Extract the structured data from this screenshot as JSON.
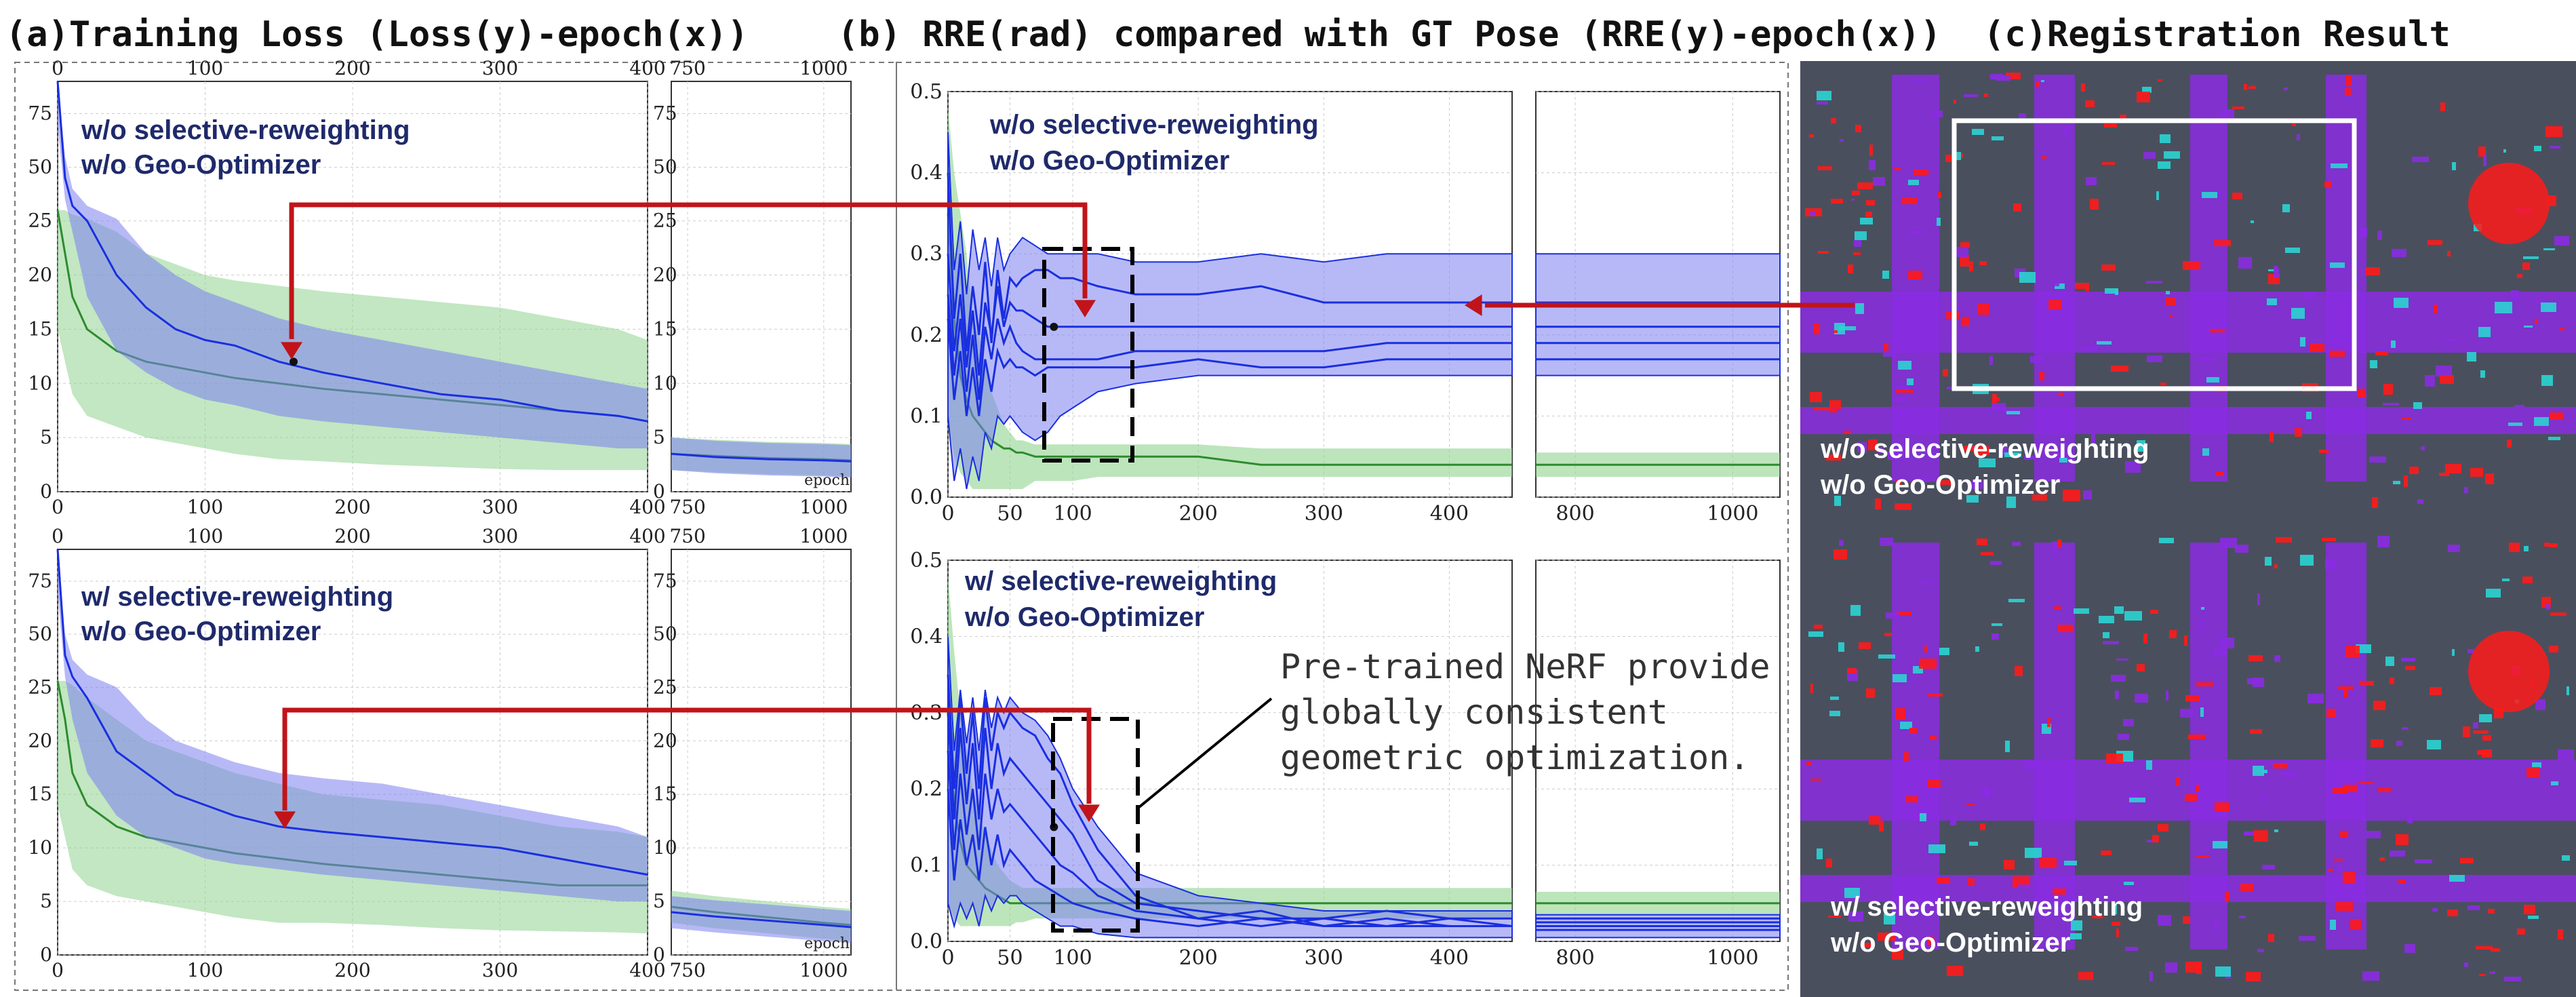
{
  "panels": {
    "a_title": "(a)Training Loss (Loss(y)-epoch(x))",
    "b_title": "(b)  RRE(rad) compared with GT Pose (RRE(y)-epoch(x))",
    "c_title": "(c)Registration Result"
  },
  "labels": {
    "top_line1": "w/o selective-reweighting",
    "top_line2": "w/o Geo-Optimizer",
    "bot_line1": "w/ selective-reweighting",
    "bot_line2": "w/o Geo-Optimizer",
    "epoch": "epoch",
    "annotation": [
      "Pre-trained NeRF provide",
      "globally consistent",
      "geometric optimization."
    ]
  },
  "colors": {
    "blue_line": "#1a2fe0",
    "blue_band": "#7b7ff0",
    "green_line": "#2e8b2e",
    "green_band": "#8fd48f",
    "red_arrow": "#c0141a",
    "map_bg": "#4a4f5e",
    "purple": "#8a2be2",
    "red_points": "#ff1a1a",
    "cyan": "#2ad4d4"
  },
  "chart_data": [
    {
      "type": "line",
      "x": [
        0,
        5,
        10,
        20,
        40,
        60,
        80,
        100,
        120,
        150,
        180,
        220,
        260,
        300,
        340,
        380,
        400
      ],
      "x_right": [
        720,
        800,
        900,
        1000,
        1050
      ],
      "series": [
        {
          "values": [
            90,
            45,
            32,
            25,
            20,
            17,
            15,
            14,
            13.5,
            12,
            11,
            10,
            9,
            8.5,
            7.5,
            7,
            6.5
          ],
          "band_lo": [
            70,
            35,
            24,
            18,
            13,
            11,
            9.5,
            8.5,
            8,
            7,
            6.5,
            6,
            5.5,
            5,
            4.5,
            4,
            4
          ],
          "band_hi": [
            90,
            55,
            40,
            32,
            26,
            22,
            20,
            18.5,
            17.5,
            16,
            15,
            14,
            13,
            12,
            11,
            10,
            9.5
          ],
          "right_values": [
            3.5,
            3.2,
            3,
            2.9,
            2.8
          ]
        },
        {
          "values": [
            30,
            22,
            18,
            15,
            13,
            12,
            11.5,
            11,
            10.5,
            10,
            9.5,
            9,
            8.5,
            8,
            7.5,
            7,
            6.5
          ],
          "band_lo": [
            15,
            12,
            9,
            7,
            6,
            5,
            4.5,
            4,
            3.5,
            3,
            2.8,
            2.5,
            2.3,
            2.1,
            2,
            2,
            2
          ],
          "band_hi": [
            30,
            30,
            28,
            26,
            24,
            22,
            21,
            20,
            19.5,
            19,
            18.5,
            18,
            17.5,
            17,
            16,
            15,
            14
          ],
          "right_values": [
            3.5,
            3.3,
            3.1,
            3,
            2.9
          ]
        }
      ],
      "xticks": [
        0,
        100,
        200,
        300,
        400
      ],
      "xticks_right": [
        750,
        1000
      ],
      "yticks": [
        0,
        5,
        10,
        15,
        20,
        25,
        50,
        75
      ],
      "ylim": [
        0,
        90
      ],
      "marker": {
        "x": 160,
        "y": 12
      }
    },
    {
      "type": "line",
      "x": [
        0,
        5,
        10,
        20,
        40,
        60,
        80,
        100,
        120,
        150,
        180,
        220,
        260,
        300,
        340,
        380,
        400
      ],
      "x_right": [
        720,
        800,
        900,
        1000,
        1050
      ],
      "series": [
        {
          "values": [
            90,
            40,
            30,
            24,
            19,
            17,
            15,
            14,
            13,
            12,
            11.5,
            11,
            10.5,
            10,
            9,
            8,
            7.5
          ],
          "band_lo": [
            70,
            30,
            22,
            17,
            13,
            11,
            10,
            9,
            8.5,
            8,
            7.5,
            7,
            6.5,
            6,
            5.5,
            5,
            5
          ],
          "band_hi": [
            90,
            50,
            38,
            31,
            25,
            22,
            20,
            19,
            18,
            17,
            16.5,
            16,
            15,
            14,
            13,
            12,
            11
          ],
          "right_values": [
            4,
            3.6,
            3.2,
            2.8,
            2.6
          ]
        },
        {
          "values": [
            28,
            22,
            17,
            14,
            12,
            11,
            10.5,
            10,
            9.5,
            9,
            8.5,
            8,
            7.5,
            7,
            6.5,
            6.5,
            6.5
          ],
          "band_lo": [
            14,
            11,
            8,
            6.5,
            5.5,
            5,
            4.5,
            4,
            3.5,
            3,
            3,
            2.8,
            2.5,
            2.3,
            2.2,
            2.1,
            2
          ],
          "band_hi": [
            28,
            28,
            26,
            24,
            22,
            20,
            19,
            18,
            17,
            16,
            15,
            14.5,
            14,
            13,
            12,
            11.5,
            11
          ],
          "right_values": [
            4.5,
            4,
            3.5,
            3,
            2.8
          ]
        }
      ],
      "xticks": [
        0,
        100,
        200,
        300,
        400
      ],
      "xticks_right": [
        750,
        1000
      ],
      "yticks": [
        0,
        5,
        10,
        15,
        20,
        25,
        50,
        75
      ],
      "ylim": [
        0,
        90
      ],
      "marker": {
        "x": 155,
        "y": 13
      }
    },
    {
      "type": "line",
      "x": [
        0,
        5,
        10,
        15,
        20,
        25,
        30,
        35,
        40,
        45,
        50,
        55,
        60,
        70,
        80,
        90,
        100,
        120,
        150,
        200,
        250,
        300,
        350,
        400,
        450
      ],
      "x_right": [
        750,
        800,
        900,
        1000,
        1060
      ],
      "blue_lines": [
        [
          0.4,
          0.22,
          0.3,
          0.18,
          0.26,
          0.2,
          0.29,
          0.19,
          0.28,
          0.22,
          0.27,
          0.26,
          0.27,
          0.28,
          0.28,
          0.27,
          0.27,
          0.26,
          0.25,
          0.25,
          0.26,
          0.24,
          0.24,
          0.24,
          0.24
        ],
        [
          0.3,
          0.18,
          0.25,
          0.16,
          0.23,
          0.15,
          0.24,
          0.2,
          0.26,
          0.21,
          0.24,
          0.23,
          0.23,
          0.22,
          0.21,
          0.21,
          0.21,
          0.21,
          0.21,
          0.21,
          0.21,
          0.21,
          0.21,
          0.21,
          0.21
        ],
        [
          0.25,
          0.15,
          0.22,
          0.13,
          0.2,
          0.12,
          0.21,
          0.17,
          0.22,
          0.19,
          0.21,
          0.19,
          0.18,
          0.17,
          0.17,
          0.17,
          0.17,
          0.17,
          0.18,
          0.18,
          0.18,
          0.18,
          0.19,
          0.19,
          0.19
        ],
        [
          0.22,
          0.12,
          0.18,
          0.1,
          0.16,
          0.1,
          0.17,
          0.13,
          0.18,
          0.16,
          0.17,
          0.16,
          0.16,
          0.15,
          0.16,
          0.16,
          0.16,
          0.16,
          0.16,
          0.17,
          0.16,
          0.16,
          0.17,
          0.17,
          0.17
        ]
      ],
      "blue_right": [
        [
          0.24,
          0.24,
          0.24,
          0.24,
          0.24
        ],
        [
          0.21,
          0.21,
          0.21,
          0.21,
          0.21
        ],
        [
          0.19,
          0.19,
          0.19,
          0.19,
          0.19
        ],
        [
          0.17,
          0.17,
          0.17,
          0.17,
          0.17
        ]
      ],
      "band_lo": [
        0.1,
        0.02,
        0.06,
        0.01,
        0.05,
        0.02,
        0.08,
        0.06,
        0.1,
        0.09,
        0.1,
        0.09,
        0.08,
        0.07,
        0.08,
        0.1,
        0.11,
        0.13,
        0.14,
        0.15,
        0.15,
        0.15,
        0.15,
        0.15,
        0.15
      ],
      "band_hi": [
        0.45,
        0.28,
        0.34,
        0.25,
        0.33,
        0.28,
        0.32,
        0.26,
        0.32,
        0.28,
        0.3,
        0.31,
        0.32,
        0.31,
        0.3,
        0.3,
        0.3,
        0.3,
        0.29,
        0.29,
        0.3,
        0.29,
        0.3,
        0.3,
        0.3
      ],
      "band_right": [
        [
          0.15,
          0.3
        ],
        [
          0.15,
          0.3
        ],
        [
          0.15,
          0.3
        ],
        [
          0.15,
          0.3
        ],
        [
          0.15,
          0.3
        ]
      ],
      "green": [
        0.35,
        0.22,
        0.15,
        0.12,
        0.1,
        0.09,
        0.08,
        0.07,
        0.065,
        0.06,
        0.06,
        0.055,
        0.055,
        0.05,
        0.05,
        0.05,
        0.05,
        0.05,
        0.05,
        0.05,
        0.04,
        0.04,
        0.04,
        0.04,
        0.04
      ],
      "green_lo": [
        0.1,
        0.05,
        0.03,
        0.02,
        0.01,
        0.01,
        0.01,
        0.01,
        0.01,
        0.01,
        0.01,
        0.01,
        0.01,
        0.02,
        0.02,
        0.02,
        0.02,
        0.025,
        0.025,
        0.025,
        0.025,
        0.025,
        0.025,
        0.025,
        0.025
      ],
      "green_hi": [
        0.48,
        0.4,
        0.35,
        0.3,
        0.22,
        0.2,
        0.16,
        0.13,
        0.11,
        0.09,
        0.08,
        0.07,
        0.07,
        0.065,
        0.065,
        0.065,
        0.065,
        0.065,
        0.065,
        0.065,
        0.06,
        0.06,
        0.06,
        0.06,
        0.06
      ],
      "green_right": [
        0.04,
        0.04,
        0.04,
        0.04,
        0.04
      ],
      "xticks": [
        0,
        50,
        100,
        200,
        300,
        400
      ],
      "xticks_right": [
        800,
        1000
      ],
      "yticks": [
        0.0,
        0.1,
        0.2,
        0.3,
        0.4,
        0.5
      ],
      "ylim": [
        0,
        0.5
      ],
      "marker": {
        "x": 85,
        "y": 0.21
      }
    },
    {
      "type": "line",
      "x": [
        0,
        5,
        10,
        15,
        20,
        25,
        30,
        35,
        40,
        45,
        50,
        55,
        60,
        70,
        80,
        90,
        100,
        120,
        150,
        200,
        250,
        300,
        350,
        400,
        450
      ],
      "x_right": [
        750,
        800,
        900,
        1000,
        1060
      ],
      "blue_lines": [
        [
          0.35,
          0.2,
          0.32,
          0.22,
          0.3,
          0.2,
          0.32,
          0.25,
          0.3,
          0.28,
          0.3,
          0.29,
          0.28,
          0.27,
          0.24,
          0.22,
          0.18,
          0.12,
          0.06,
          0.03,
          0.04,
          0.02,
          0.03,
          0.02,
          0.02
        ],
        [
          0.3,
          0.16,
          0.28,
          0.18,
          0.26,
          0.16,
          0.28,
          0.2,
          0.26,
          0.22,
          0.24,
          0.23,
          0.22,
          0.2,
          0.18,
          0.16,
          0.14,
          0.08,
          0.05,
          0.04,
          0.03,
          0.03,
          0.04,
          0.03,
          0.03
        ],
        [
          0.25,
          0.12,
          0.22,
          0.14,
          0.2,
          0.12,
          0.22,
          0.16,
          0.2,
          0.17,
          0.18,
          0.17,
          0.16,
          0.14,
          0.12,
          0.1,
          0.09,
          0.06,
          0.04,
          0.03,
          0.02,
          0.03,
          0.02,
          0.03,
          0.02
        ],
        [
          0.2,
          0.08,
          0.16,
          0.1,
          0.14,
          0.08,
          0.15,
          0.1,
          0.14,
          0.1,
          0.12,
          0.11,
          0.1,
          0.08,
          0.07,
          0.06,
          0.05,
          0.04,
          0.03,
          0.02,
          0.03,
          0.02,
          0.02,
          0.02,
          0.02
        ]
      ],
      "blue_right": [
        [
          0.03,
          0.03,
          0.03,
          0.03,
          0.03
        ],
        [
          0.025,
          0.025,
          0.025,
          0.025,
          0.025
        ],
        [
          0.02,
          0.02,
          0.02,
          0.02,
          0.02
        ],
        [
          0.015,
          0.015,
          0.015,
          0.015,
          0.015
        ]
      ],
      "band_lo": [
        0.05,
        0.02,
        0.05,
        0.03,
        0.05,
        0.02,
        0.06,
        0.04,
        0.06,
        0.05,
        0.06,
        0.06,
        0.05,
        0.04,
        0.03,
        0.02,
        0.02,
        0.01,
        0.005,
        0.005,
        0.005,
        0.005,
        0.005,
        0.005,
        0.005
      ],
      "band_hi": [
        0.4,
        0.25,
        0.33,
        0.26,
        0.32,
        0.25,
        0.33,
        0.28,
        0.32,
        0.3,
        0.32,
        0.31,
        0.3,
        0.29,
        0.27,
        0.24,
        0.2,
        0.15,
        0.09,
        0.06,
        0.05,
        0.04,
        0.04,
        0.04,
        0.04
      ],
      "band_right": [
        [
          0.005,
          0.035
        ],
        [
          0.005,
          0.035
        ],
        [
          0.005,
          0.035
        ],
        [
          0.005,
          0.035
        ],
        [
          0.005,
          0.035
        ]
      ],
      "green": [
        0.3,
        0.18,
        0.13,
        0.1,
        0.09,
        0.08,
        0.07,
        0.065,
        0.06,
        0.055,
        0.05,
        0.05,
        0.05,
        0.05,
        0.05,
        0.05,
        0.05,
        0.05,
        0.05,
        0.05,
        0.05,
        0.05,
        0.05,
        0.05,
        0.05
      ],
      "green_lo": [
        0.05,
        0.03,
        0.02,
        0.02,
        0.02,
        0.02,
        0.02,
        0.02,
        0.02,
        0.02,
        0.02,
        0.025,
        0.025,
        0.03,
        0.03,
        0.03,
        0.03,
        0.03,
        0.03,
        0.03,
        0.03,
        0.03,
        0.03,
        0.03,
        0.03
      ],
      "green_hi": [
        0.48,
        0.38,
        0.3,
        0.25,
        0.2,
        0.17,
        0.14,
        0.12,
        0.1,
        0.09,
        0.08,
        0.075,
        0.07,
        0.07,
        0.07,
        0.07,
        0.07,
        0.07,
        0.07,
        0.07,
        0.07,
        0.07,
        0.07,
        0.07,
        0.07
      ],
      "green_right": [
        0.05,
        0.05,
        0.05,
        0.05,
        0.05
      ],
      "xticks": [
        0,
        50,
        100,
        200,
        300,
        400
      ],
      "xticks_right": [
        800,
        1000
      ],
      "yticks": [
        0.0,
        0.1,
        0.2,
        0.3,
        0.4,
        0.5
      ],
      "ylim": [
        0,
        0.5
      ],
      "marker": {
        "x": 85,
        "y": 0.15
      }
    }
  ]
}
